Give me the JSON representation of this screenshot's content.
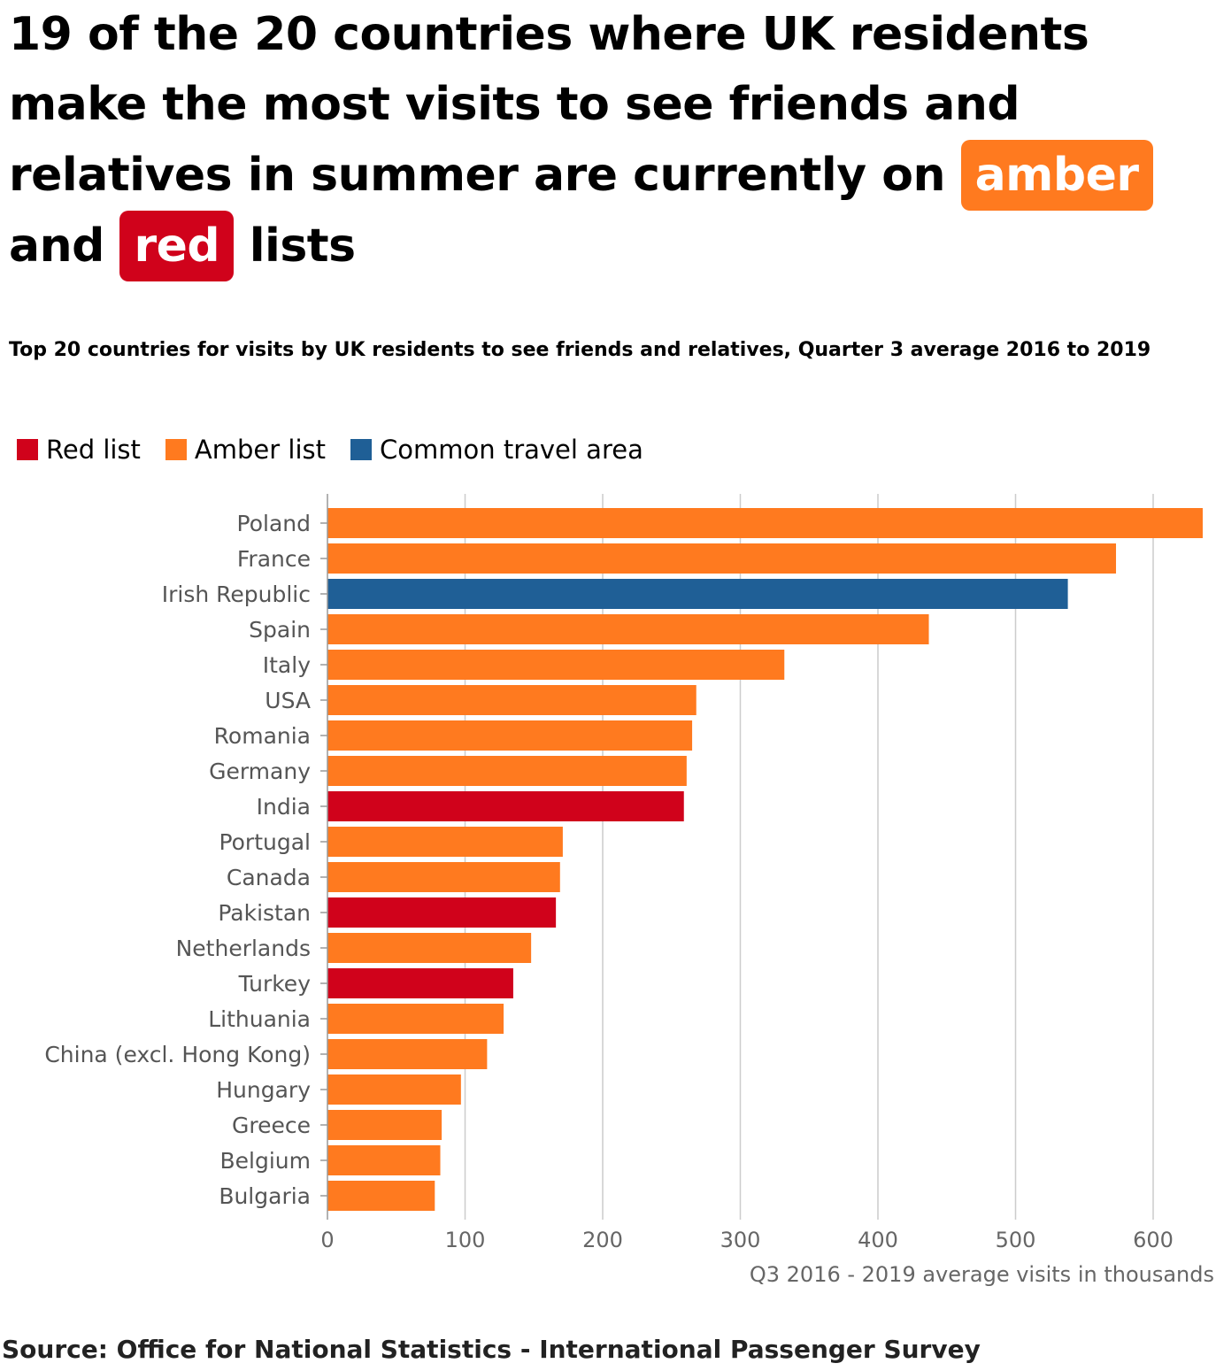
{
  "headline": {
    "part1": "19 of the 20 countries where UK residents make the most visits to see friends and relatives in summer are currently on",
    "amber_word": "amber",
    "part2": "and",
    "red_word": "red",
    "part3": "lists"
  },
  "source": "Source: Office for National Statistics - International Passenger Survey",
  "colors": {
    "red": "#d0021b",
    "amber": "#ff7a1f",
    "cta": "#1f5f96",
    "grid": "#cccccc"
  },
  "legend": [
    {
      "label": "Red list",
      "color": "#d0021b"
    },
    {
      "label": "Amber list",
      "color": "#ff7a1f"
    },
    {
      "label": "Common travel area",
      "color": "#1f5f96"
    }
  ],
  "chart_data": {
    "type": "bar",
    "orientation": "horizontal",
    "title": "Top 20 countries for visits by UK residents to see friends and relatives, Quarter 3 average 2016 to 2019",
    "xlabel": "Q3 2016 - 2019 average visits in thousands",
    "ylabel": "",
    "xlim": [
      0,
      640
    ],
    "xticks": [
      0,
      100,
      200,
      300,
      400,
      500,
      600
    ],
    "grid": true,
    "legend_position": "top-left",
    "categories": [
      "Poland",
      "France",
      "Irish Republic",
      "Spain",
      "Italy",
      "USA",
      "Romania",
      "Germany",
      "India",
      "Portugal",
      "Canada",
      "Pakistan",
      "Netherlands",
      "Turkey",
      "Lithuania",
      "China (excl. Hong Kong)",
      "Hungary",
      "Greece",
      "Belgium",
      "Bulgaria"
    ],
    "values": [
      636,
      573,
      538,
      437,
      332,
      268,
      265,
      261,
      259,
      171,
      169,
      166,
      148,
      135,
      128,
      116,
      97,
      83,
      82,
      78
    ],
    "groups": [
      "Amber list",
      "Amber list",
      "Common travel area",
      "Amber list",
      "Amber list",
      "Amber list",
      "Amber list",
      "Amber list",
      "Red list",
      "Amber list",
      "Amber list",
      "Red list",
      "Amber list",
      "Red list",
      "Amber list",
      "Amber list",
      "Amber list",
      "Amber list",
      "Amber list",
      "Amber list"
    ]
  }
}
